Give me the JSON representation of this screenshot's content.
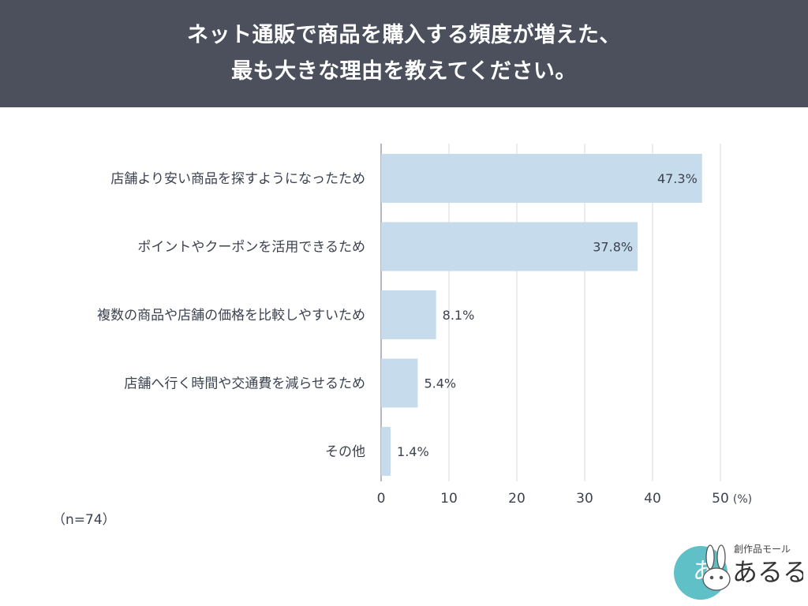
{
  "header": {
    "title_line1": "ネット通販で商品を購入する頻度が増えた、",
    "title_line2": "最も大きな理由を教えてください。"
  },
  "chart_data": {
    "type": "bar",
    "orientation": "horizontal",
    "categories": [
      "店舗より安い商品を探すようになったため",
      "ポイントやクーポンを活用できるため",
      "複数の商品や店舗の価格を比較しやすいため",
      "店舗へ行く時間や交通費を減らせるため",
      "その他"
    ],
    "values": [
      47.3,
      37.8,
      8.1,
      5.4,
      1.4
    ],
    "value_labels": [
      "47.3%",
      "37.8%",
      "8.1%",
      "5.4%",
      "1.4%"
    ],
    "xlim": [
      0,
      50
    ],
    "x_ticks": [
      "0",
      "10",
      "20",
      "30",
      "40",
      "50"
    ],
    "x_unit": "(%)",
    "grid": "vertical",
    "bar_color": "#c6dcec"
  },
  "note": "（n=74）",
  "logo": {
    "small_text": "創作品モール",
    "big_text": "あるる",
    "badge_text": "あ"
  },
  "colors": {
    "header_bg": "#4b505c",
    "bar": "#c6dcec",
    "text": "#3c4250",
    "grid": "#d8dadd",
    "logo_teal": "#5fc0c8"
  }
}
